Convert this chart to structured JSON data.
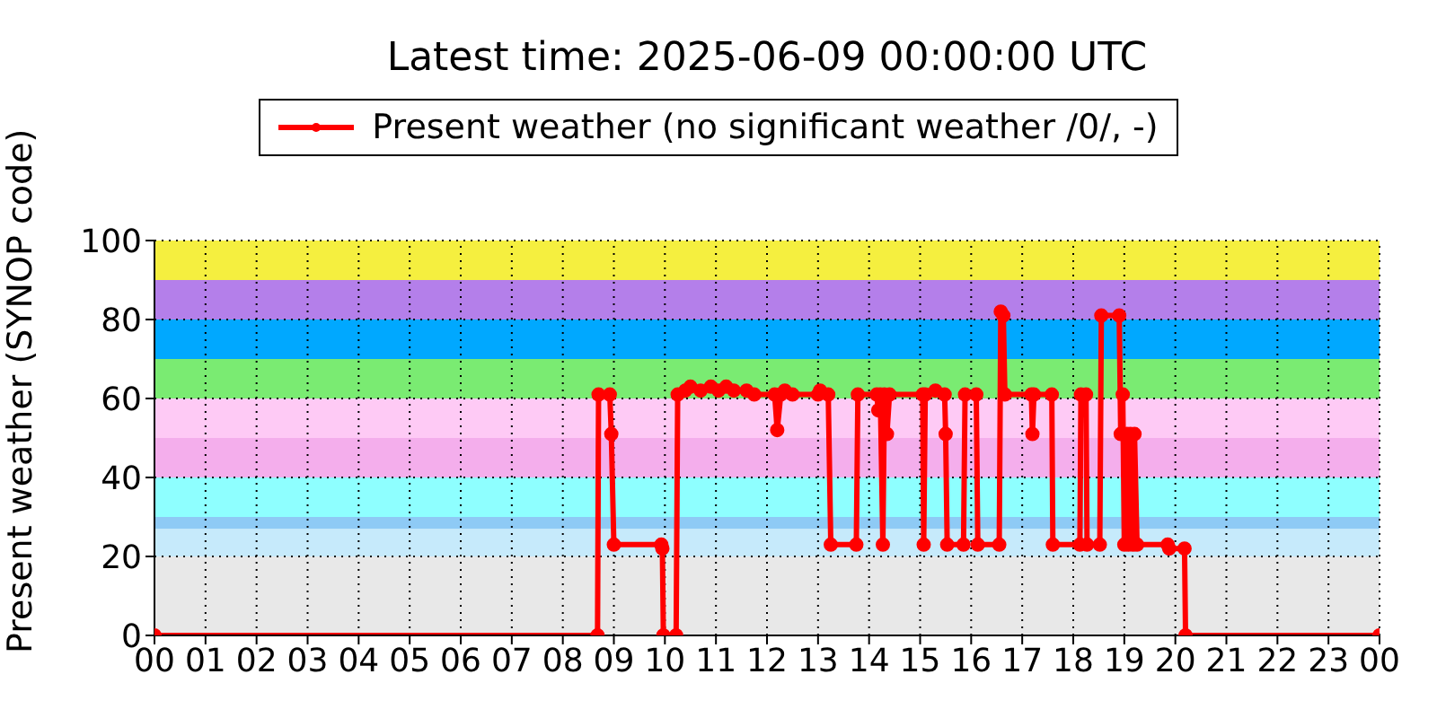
{
  "chart_data": {
    "type": "line",
    "title": "Latest time: 2025-06-09 00:00:00 UTC",
    "ylabel": "Present weather (SYNOP code)",
    "xlim": [
      0,
      24
    ],
    "xticks": [
      {
        "value": 0,
        "label": "00"
      },
      {
        "value": 1,
        "label": "01"
      },
      {
        "value": 2,
        "label": "02"
      },
      {
        "value": 3,
        "label": "03"
      },
      {
        "value": 4,
        "label": "04"
      },
      {
        "value": 5,
        "label": "05"
      },
      {
        "value": 6,
        "label": "06"
      },
      {
        "value": 7,
        "label": "07"
      },
      {
        "value": 8,
        "label": "08"
      },
      {
        "value": 9,
        "label": "09"
      },
      {
        "value": 10,
        "label": "10"
      },
      {
        "value": 11,
        "label": "11"
      },
      {
        "value": 12,
        "label": "12"
      },
      {
        "value": 13,
        "label": "13"
      },
      {
        "value": 14,
        "label": "14"
      },
      {
        "value": 15,
        "label": "15"
      },
      {
        "value": 16,
        "label": "16"
      },
      {
        "value": 17,
        "label": "17"
      },
      {
        "value": 18,
        "label": "18"
      },
      {
        "value": 19,
        "label": "19"
      },
      {
        "value": 20,
        "label": "20"
      },
      {
        "value": 21,
        "label": "21"
      },
      {
        "value": 22,
        "label": "22"
      },
      {
        "value": 23,
        "label": "23"
      },
      {
        "value": 24,
        "label": "00"
      }
    ],
    "ylim": [
      0,
      100
    ],
    "yticks": [
      0,
      20,
      40,
      60,
      80,
      100
    ],
    "grid": true,
    "legend": "top",
    "marker": "circle",
    "line_style": "solid",
    "bands": [
      {
        "axis": "y",
        "from": 0,
        "to": 20,
        "color": "#e8e8e8"
      },
      {
        "axis": "y",
        "from": 20,
        "to": 27,
        "color": "#c6eafb"
      },
      {
        "axis": "y",
        "from": 27,
        "to": 30,
        "color": "#8ecaf5"
      },
      {
        "axis": "y",
        "from": 30,
        "to": 40,
        "color": "#8effff"
      },
      {
        "axis": "y",
        "from": 40,
        "to": 50,
        "color": "#f4aeec"
      },
      {
        "axis": "y",
        "from": 50,
        "to": 60,
        "color": "#fecaf5"
      },
      {
        "axis": "y",
        "from": 60,
        "to": 70,
        "color": "#7aeb72"
      },
      {
        "axis": "y",
        "from": 70,
        "to": 80,
        "color": "#00a8ff"
      },
      {
        "axis": "y",
        "from": 80,
        "to": 90,
        "color": "#b47fea"
      },
      {
        "axis": "y",
        "from": 90,
        "to": 100,
        "color": "#f5ef3f"
      }
    ],
    "x": [
      0,
      8.68,
      8.7,
      8.92,
      8.95,
      9.0,
      9.93,
      9.95,
      9.97,
      10.22,
      10.25,
      10.4,
      10.5,
      10.7,
      10.9,
      11.05,
      11.2,
      11.35,
      11.6,
      11.75,
      12.15,
      12.2,
      12.27,
      12.35,
      12.5,
      13.0,
      13.04,
      13.2,
      13.25,
      13.75,
      13.78,
      14.15,
      14.18,
      14.22,
      14.27,
      14.3,
      14.35,
      14.4,
      15.05,
      15.07,
      15.1,
      15.3,
      15.48,
      15.5,
      15.53,
      15.85,
      15.88,
      16.1,
      16.13,
      16.55,
      16.58,
      16.63,
      16.66,
      17.18,
      17.2,
      17.23,
      17.58,
      17.6,
      18.13,
      18.15,
      18.25,
      18.27,
      18.52,
      18.55,
      18.9,
      18.93,
      18.97,
      19.0,
      19.05,
      19.08,
      19.12,
      19.17,
      19.2,
      19.25,
      19.85,
      19.88,
      20.18,
      20.2,
      24
    ],
    "series": [
      {
        "name": "Present weather (no significant weather /0/, -)",
        "color": "#ff0000",
        "values": [
          0,
          0,
          61,
          61,
          51,
          23,
          23,
          22,
          0,
          0,
          61,
          62,
          63,
          62,
          63,
          62,
          63,
          62,
          62,
          61,
          61,
          52,
          61,
          62,
          61,
          61,
          62,
          61,
          23,
          23,
          61,
          61,
          57,
          61,
          23,
          61,
          51,
          61,
          61,
          23,
          61,
          62,
          61,
          51,
          23,
          23,
          61,
          61,
          23,
          23,
          82,
          81,
          61,
          61,
          51,
          61,
          61,
          23,
          23,
          61,
          61,
          23,
          23,
          81,
          81,
          51,
          61,
          23,
          51,
          23,
          51,
          23,
          51,
          23,
          23,
          22,
          22,
          0,
          0
        ]
      }
    ]
  }
}
